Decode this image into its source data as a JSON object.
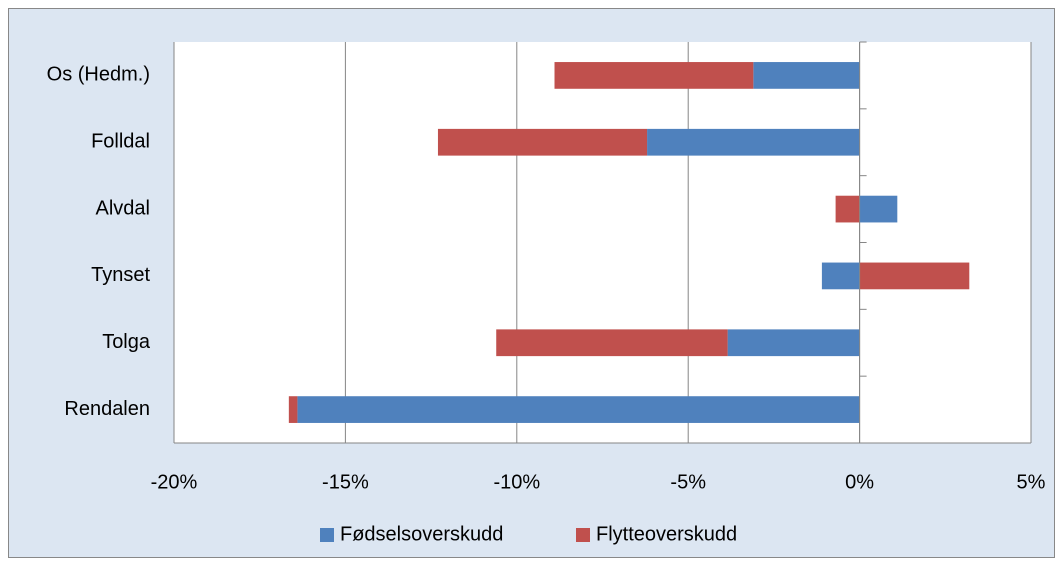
{
  "chart_data": {
    "type": "stacked-barh",
    "categories": [
      "Os (Hedm.)",
      "Folldal",
      "Alvdal",
      "Tynset",
      "Tolga",
      "Rendalen"
    ],
    "series": [
      {
        "name": "Fødselsoverskudd",
        "color": "#4f81bd",
        "values": [
          -3.1,
          -6.2,
          1.1,
          -1.1,
          -3.85,
          -16.4
        ]
      },
      {
        "name": "Flytteoverskudd",
        "color": "#c0504d",
        "values": [
          -5.8,
          -6.1,
          -0.7,
          3.2,
          -6.75,
          -0.25
        ]
      }
    ],
    "xlim": [
      -20,
      5
    ],
    "xticks": [
      {
        "value": -20,
        "label": "-20%"
      },
      {
        "value": -15,
        "label": "-15%"
      },
      {
        "value": -10,
        "label": "-10%"
      },
      {
        "value": -5,
        "label": "-5%"
      },
      {
        "value": 0,
        "label": "0%"
      },
      {
        "value": 5,
        "label": "5%"
      }
    ],
    "grid": true,
    "legend": "bottom"
  }
}
